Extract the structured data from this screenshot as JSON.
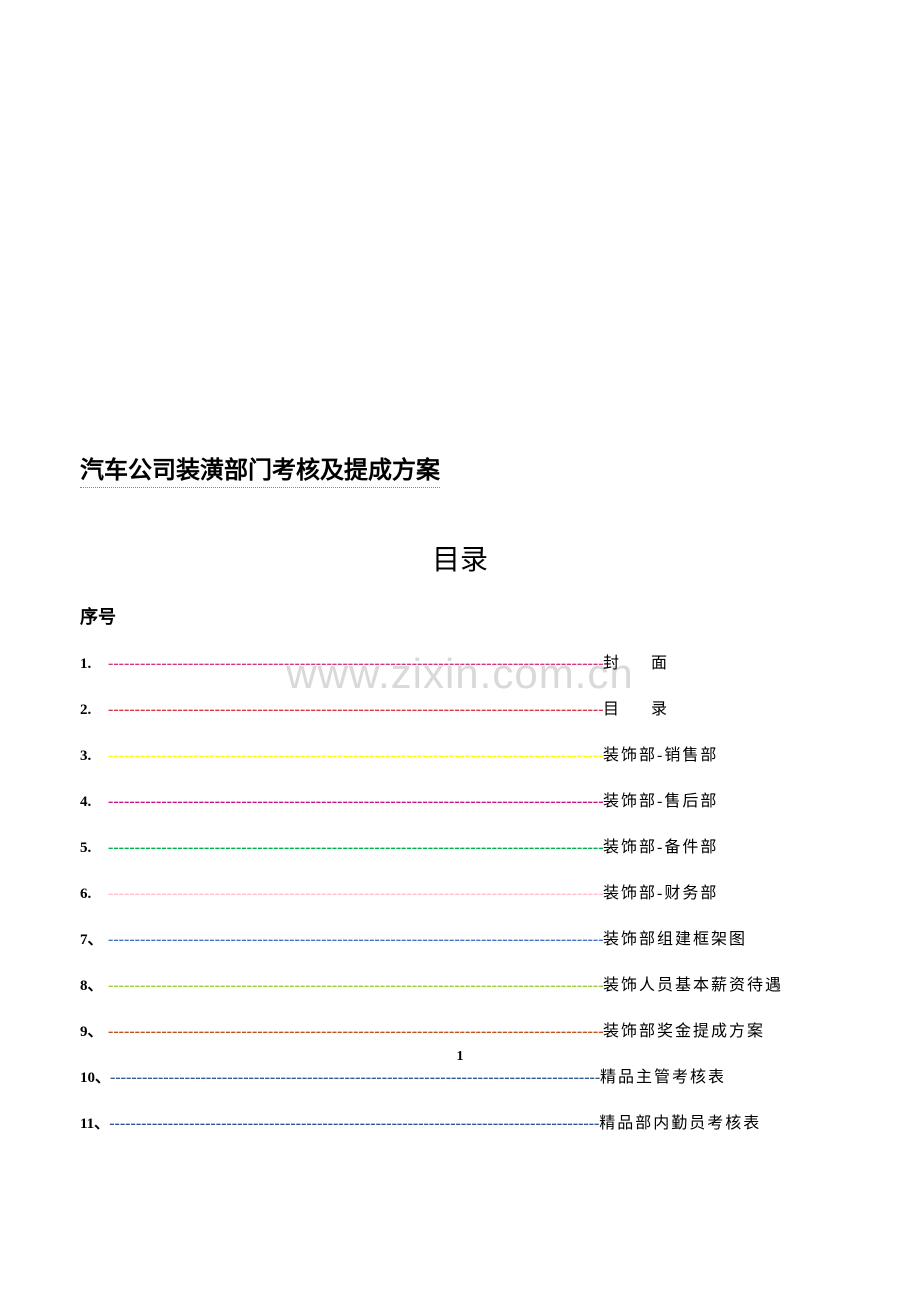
{
  "title": "汽车公司装潢部门考核及提成方案",
  "toc_heading": "目录",
  "seq_label": "序号",
  "watermark": "www.zixin.com.cn",
  "page_number": "1",
  "toc": {
    "dash_char": "-",
    "items": [
      {
        "num": "1.",
        "label": "封　　面",
        "color": "#d63384",
        "dash_width": 495,
        "spaced": true
      },
      {
        "num": "2.",
        "label": "目　　录",
        "color": "#dc3545",
        "dash_width": 495,
        "spaced": true
      },
      {
        "num": "3.",
        "label": "装饰部-销售部",
        "color": "#ffff00",
        "dash_width": 495,
        "spaced": false
      },
      {
        "num": "4.",
        "label": "装饰部-售后部",
        "color": "#c71585",
        "dash_width": 495,
        "spaced": false
      },
      {
        "num": "5.",
        "label": "装饰部-备件部",
        "color": "#00b050",
        "dash_width": 495,
        "spaced": false
      },
      {
        "num": "6.",
        "label": "装饰部-财务部",
        "color": "#ffc0cb",
        "dash_width": 495,
        "spaced": false
      },
      {
        "num": "7、",
        "label": "装饰部组建框架图",
        "color": "#4472c4",
        "dash_width": 495,
        "spaced": false
      },
      {
        "num": "8、",
        "label": "装饰人员基本薪资待遇",
        "color": "#9acd32",
        "dash_width": 495,
        "spaced": false
      },
      {
        "num": "9、",
        "label": "装饰部奖金提成方案",
        "color": "#c05020",
        "dash_width": 495,
        "spaced": false
      },
      {
        "num": "10、",
        "label": "精品主管考核表",
        "color": "#2e5c8a",
        "dash_width": 490,
        "spaced": false
      },
      {
        "num": "11、",
        "label": "精品部内勤员考核表",
        "color": "#2f5496",
        "dash_width": 490,
        "spaced": false
      }
    ]
  }
}
